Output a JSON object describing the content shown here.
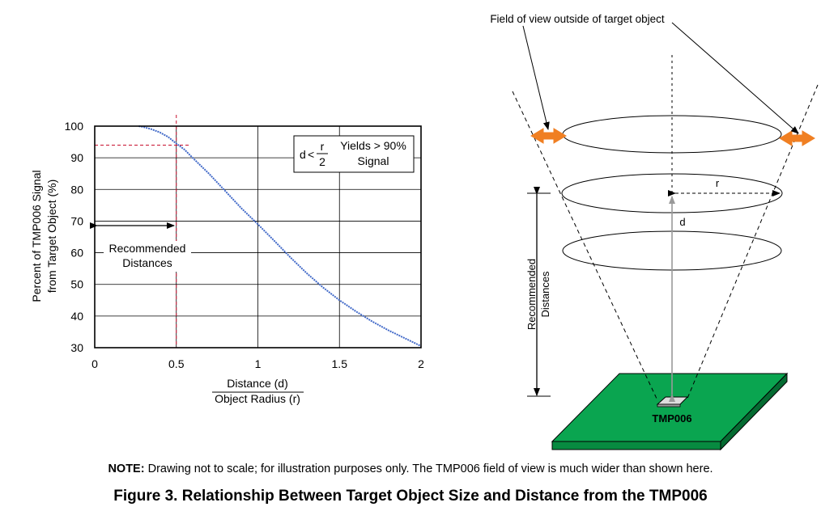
{
  "chart_data": {
    "type": "line",
    "ylabel_line1": "Percent of TMP006 Signal",
    "ylabel_line2": "from Target Object (%)",
    "xlabel_num": "Distance (d)",
    "xlabel_den": "Object Radius (r)",
    "xlim": [
      0,
      2
    ],
    "ylim": [
      30,
      100
    ],
    "xticks": [
      0,
      0.5,
      1,
      1.5,
      2
    ],
    "xtick_labels": [
      "0",
      "0.5",
      "1",
      "1.5",
      "2"
    ],
    "yticks": [
      30,
      40,
      50,
      60,
      70,
      80,
      90,
      100
    ],
    "ytick_labels": [
      "30",
      "40",
      "50",
      "60",
      "70",
      "80",
      "90",
      "100"
    ],
    "grid": true,
    "series": [
      {
        "x": [
          0.27,
          0.3,
          0.35,
          0.4,
          0.45,
          0.5,
          0.55,
          0.6,
          0.7,
          0.8,
          0.9,
          1.0,
          1.1,
          1.2,
          1.3,
          1.4,
          1.5,
          1.6,
          1.7,
          1.8,
          1.9,
          2.0
        ],
        "y": [
          100,
          99.7,
          99,
          98,
          96.6,
          94.5,
          92.6,
          90,
          85,
          79.5,
          74,
          69,
          63.8,
          58.5,
          53.5,
          49,
          45,
          41.5,
          38.3,
          35.5,
          33,
          30.5
        ]
      }
    ],
    "reference_x": 0.5,
    "reference_y": 94,
    "annotations": {
      "recommended_line1": "Recommended",
      "recommended_line2": "Distances",
      "formula_d": "d",
      "formula_lt": "<",
      "formula_r": "r",
      "formula_2": "2",
      "yields_line1": "Yields > 90%",
      "yields_line2": "Signal"
    }
  },
  "diagram": {
    "fov_label": "Field of view outside of target object",
    "r_label": "r",
    "d_label": "d",
    "recommended_line1": "Recommended",
    "recommended_line2": "Distances",
    "sensor_label": "TMP006",
    "board_color": "#0aa550",
    "board_side_color": "#078a40",
    "arrow_color": "#f07f22"
  },
  "note": {
    "prefix": "NOTE:",
    "text": " Drawing not to scale; for illustration purposes only. The TMP006 field of view is much wider than shown here."
  },
  "caption": "Figure 3. Relationship Between Target Object Size and Distance from the TMP006"
}
